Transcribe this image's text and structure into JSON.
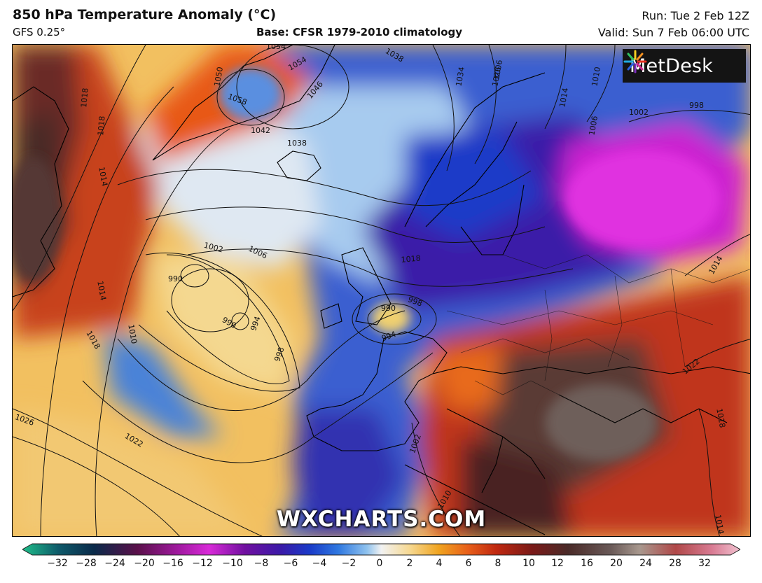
{
  "header": {
    "title": "850 hPa Temperature Anomaly (°C)",
    "model": "GFS 0.25°",
    "base": "Base: CFSR 1979-2010 climatology",
    "run": "Run: Tue 2 Feb 12Z",
    "valid": "Valid: Sun 7 Feb 06:00 UTC"
  },
  "branding": {
    "logo": "MetDesk",
    "logo_icon": "metdesk-burst-icon",
    "watermark": "WXCHARTS.COM"
  },
  "isobars": {
    "labels": [
      "1054",
      "1050",
      "1058",
      "1054",
      "1046",
      "1042",
      "1038",
      "1038",
      "1034",
      "1026",
      "1014",
      "1010",
      "1006",
      "1002",
      "998",
      "1018",
      "1014",
      "1002",
      "1006",
      "990",
      "990",
      "994",
      "998",
      "1014",
      "1010",
      "1018",
      "1026",
      "1022",
      "990",
      "998",
      "994",
      "1018",
      "1002",
      "1022",
      "1018",
      "1014",
      "1014",
      "1010",
      "1006",
      "1018"
    ]
  },
  "colorbar": {
    "ticks": [
      "−32",
      "−28",
      "−24",
      "−20",
      "−16",
      "−12",
      "−10",
      "−8",
      "−6",
      "−4",
      "−2",
      "0",
      "2",
      "4",
      "6",
      "8",
      "10",
      "12",
      "16",
      "20",
      "24",
      "28",
      "32"
    ],
    "colors": [
      "#1fbf8a",
      "#0e5a6a",
      "#0a2a4a",
      "#5a104a",
      "#a41aa4",
      "#d82ad8",
      "#7010a0",
      "#3a1aa8",
      "#1a3ac8",
      "#2f78e0",
      "#8fc2ee",
      "#f2f2f2",
      "#f6d890",
      "#f0a420",
      "#e8601a",
      "#c02810",
      "#7a1a18",
      "#4a2a28",
      "#6a5a58",
      "#a8988e",
      "#b04848",
      "#d87a92",
      "#f2c2d0"
    ]
  },
  "legend": {
    "units": "°C",
    "extend_arrows": "both"
  }
}
